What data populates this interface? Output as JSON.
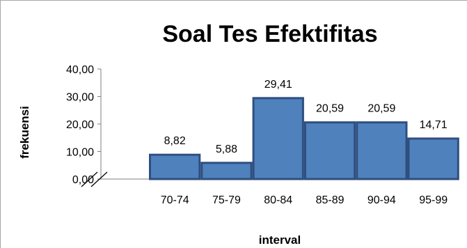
{
  "chart_data": {
    "type": "bar",
    "title": "Soal Tes Efektifitas",
    "xlabel": "interval",
    "ylabel": "frekuensi",
    "categories": [
      "70-74",
      "75-79",
      "80-84",
      "85-89",
      "90-94",
      "95-99"
    ],
    "values": [
      8.82,
      5.88,
      29.41,
      20.59,
      20.59,
      14.71
    ],
    "data_labels": [
      "8,82",
      "5,88",
      "29,41",
      "20,59",
      "20,59",
      "14,71"
    ],
    "yticks": [
      "0,00",
      "10,00",
      "20,00",
      "30,00",
      "40,00"
    ],
    "ylim": [
      0,
      40
    ],
    "grid": false,
    "legend": "none",
    "axis_break": true,
    "colors": {
      "bar_fill": "#4F81BD",
      "bar_stroke": "#2F4F7F",
      "axis": "#7f7f7f"
    }
  }
}
